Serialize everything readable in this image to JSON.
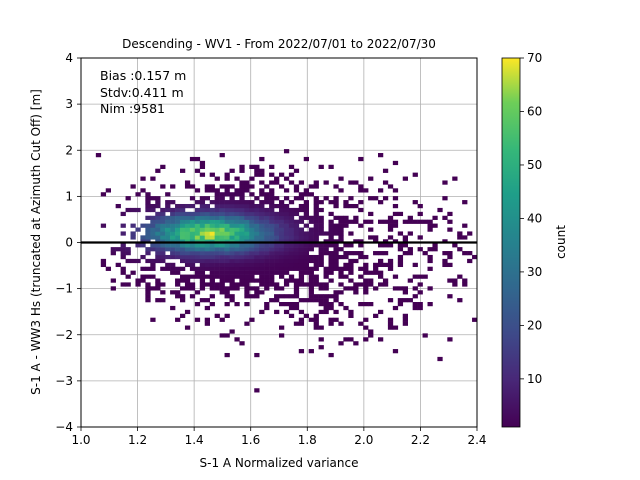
{
  "chart_data": {
    "type": "heatmap",
    "title": "Descending - WV1 - From 2022/07/01 to 2022/07/30",
    "xlabel": "S-1 A Normalized variance",
    "ylabel": "S-1 A - WW3 Hs (truncated at Azimuth Cut Off) [m]",
    "xlim": [
      1.0,
      2.4
    ],
    "ylim": [
      -4,
      4
    ],
    "xticks": [
      "1.0",
      "1.2",
      "1.4",
      "1.6",
      "1.8",
      "2.0",
      "2.2",
      "2.4"
    ],
    "yticks": [
      "4",
      "3",
      "2",
      "1",
      "0",
      "−1",
      "−2",
      "−3",
      "−4"
    ],
    "grid": true,
    "reference_line_y": 0,
    "annotations": [
      "Bias :0.157 m",
      "Stdv:0.411 m",
      "Nim :9581"
    ],
    "colorbar": {
      "label": "count",
      "range": [
        1,
        70
      ],
      "ticks": [
        "70",
        "60",
        "50",
        "40",
        "30",
        "20",
        "10"
      ],
      "colormap": "viridis"
    },
    "distribution": {
      "peak_x": 1.45,
      "peak_y": 0.2,
      "peak_count": 70,
      "x_spread": 0.15,
      "y_spread": 0.28,
      "x_tail_max": 2.3,
      "y_range": [
        -3.5,
        2.0
      ]
    }
  }
}
